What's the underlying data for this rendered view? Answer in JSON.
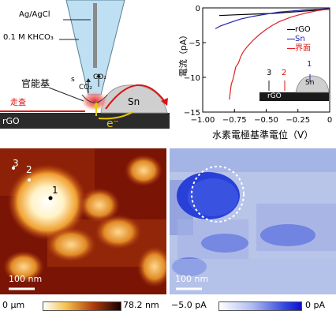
{
  "schematic": {
    "electrode": "Ag/AgCl",
    "electrolyte": "0.1 M KHCO₃",
    "functional_group": "官能基",
    "scan": "走査",
    "co2_left": "CO₂",
    "co2_right": "CO₂",
    "electron": "e⁻",
    "substrate": "rGO",
    "particle": "Sn",
    "small_label": "s"
  },
  "chart_data": {
    "type": "line",
    "xlabel": "水素電極基準電位（V）",
    "ylabel": "電流（pA）",
    "xlim": [
      -1.0,
      0.0
    ],
    "ylim": [
      -15,
      0
    ],
    "x_ticks": [
      "−1.00",
      "−0.75",
      "−0.50",
      "−0.25",
      "0"
    ],
    "y_ticks": [
      "0",
      "−5",
      "−10",
      "−15"
    ],
    "legend_position": "top-right",
    "series": [
      {
        "name": "rGO",
        "color": "#000000",
        "points": [
          [
            -0.87,
            -1.1
          ],
          [
            -0.75,
            -1.0
          ],
          [
            -0.6,
            -0.9
          ],
          [
            -0.45,
            -0.8
          ],
          [
            -0.3,
            -0.6
          ],
          [
            -0.15,
            -0.4
          ],
          [
            0.0,
            -0.2
          ]
        ]
      },
      {
        "name": "Sn",
        "color": "#2222aa",
        "points": [
          [
            -0.9,
            -3.0
          ],
          [
            -0.86,
            -2.6
          ],
          [
            -0.8,
            -2.2
          ],
          [
            -0.75,
            -1.9
          ],
          [
            -0.7,
            -1.6
          ],
          [
            -0.6,
            -1.2
          ],
          [
            -0.5,
            -0.9
          ],
          [
            -0.4,
            -0.6
          ],
          [
            -0.3,
            -0.45
          ],
          [
            -0.2,
            -0.3
          ],
          [
            -0.1,
            -0.2
          ],
          [
            0.0,
            -0.1
          ]
        ]
      },
      {
        "name": "界面",
        "color": "#e02020",
        "points": [
          [
            -0.79,
            -13.2
          ],
          [
            -0.775,
            -11.0
          ],
          [
            -0.76,
            -10.2
          ],
          [
            -0.74,
            -8.5
          ],
          [
            -0.72,
            -8.0
          ],
          [
            -0.7,
            -7.0
          ],
          [
            -0.68,
            -6.3
          ],
          [
            -0.65,
            -5.6
          ],
          [
            -0.6,
            -4.6
          ],
          [
            -0.55,
            -3.8
          ],
          [
            -0.5,
            -3.1
          ],
          [
            -0.45,
            -2.5
          ],
          [
            -0.4,
            -2.0
          ],
          [
            -0.3,
            -1.3
          ],
          [
            -0.2,
            -0.8
          ],
          [
            -0.1,
            -0.4
          ],
          [
            0.0,
            -0.15
          ]
        ]
      }
    ],
    "inset": {
      "substrate": "rGO",
      "particle": "Sn",
      "points": [
        "3",
        "2",
        "1"
      ]
    }
  },
  "topography": {
    "points": [
      "1",
      "2",
      "3"
    ],
    "scalebar": "100 nm",
    "cbar_min": "0 μm",
    "cbar_max": "78.2 nm"
  },
  "current_map": {
    "scalebar": "100 nm",
    "cbar_min": "−5.0 pA",
    "cbar_max": "0 pA"
  },
  "colors": {
    "rgo": "#2b2b2b",
    "sn": "#cfcfcf",
    "tip": "#bfe0f2",
    "scan": "#dd1111",
    "electron": "#e8c800",
    "legend_sn": "#2222aa",
    "legend_interface": "#e02020"
  }
}
